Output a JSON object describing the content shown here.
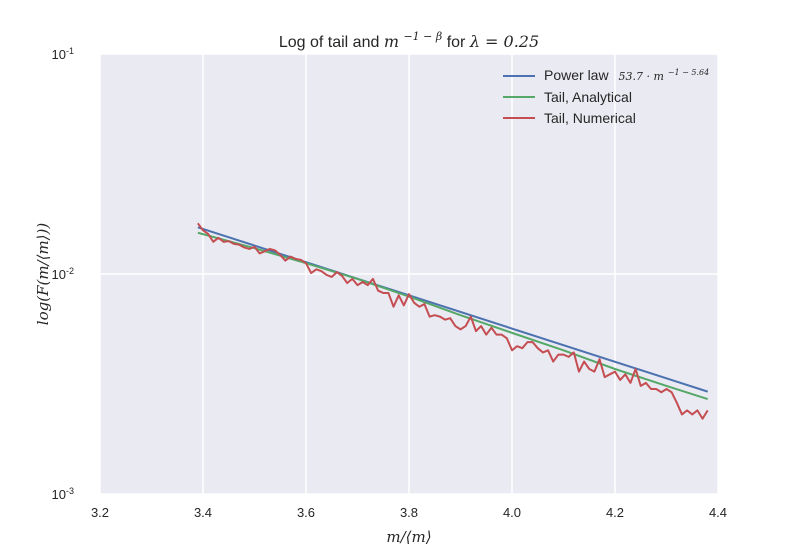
{
  "colors": {
    "plot_background": "#EAEAF2",
    "grid": "#FFFFFF",
    "text": "#262626",
    "power_law": "#4C72B0",
    "tail_analytical": "#55A868",
    "tail_numerical": "#C44E52"
  },
  "chart_data": {
    "type": "line",
    "title": {
      "prefix": "Log of tail and ",
      "base": "m",
      "exponent": "−1 − β",
      "middle": " for ",
      "condition": "λ = 0.25"
    },
    "xlabel": "m/⟨m⟩",
    "ylabel": "log(F(m/⟨m⟩))",
    "y_scale": "log",
    "xlim": [
      3.2,
      4.4
    ],
    "ylim": [
      0.001,
      0.1
    ],
    "x_ticks": [
      3.2,
      3.4,
      3.6,
      3.8,
      4.0,
      4.2,
      4.4
    ],
    "x_tick_labels": [
      "3.2",
      "3.4",
      "3.6",
      "3.8",
      "4.0",
      "4.2",
      "4.4"
    ],
    "y_ticks": [
      {
        "value": 0.001,
        "base": "10",
        "exp": "-3"
      },
      {
        "value": 0.01,
        "base": "10",
        "exp": "-2"
      },
      {
        "value": 0.1,
        "base": "10",
        "exp": "-1"
      }
    ],
    "grid": true,
    "legend_position": "top-right",
    "series": [
      {
        "key": "power_law",
        "name": "Power law",
        "formula": "53.7 · m",
        "formula_exponent": "−1 − 5.64",
        "x": [
          3.39,
          4.38
        ],
        "y": [
          0.0163,
          0.00292
        ]
      },
      {
        "key": "tail_analytical",
        "name": "Tail, Analytical",
        "x": [
          3.39,
          3.5,
          3.6,
          3.7,
          3.8,
          3.9,
          4.0,
          4.1,
          4.2,
          4.3,
          4.38
        ],
        "y": [
          0.0154,
          0.0131,
          0.0112,
          0.0095,
          0.0079,
          0.0065,
          0.0054,
          0.0045,
          0.0037,
          0.0031,
          0.0027
        ]
      },
      {
        "key": "tail_numerical",
        "name": "Tail, Numerical",
        "x": [
          3.39,
          3.4,
          3.41,
          3.42,
          3.43,
          3.44,
          3.45,
          3.46,
          3.47,
          3.48,
          3.49,
          3.5,
          3.51,
          3.52,
          3.53,
          3.54,
          3.55,
          3.56,
          3.57,
          3.58,
          3.59,
          3.6,
          3.61,
          3.62,
          3.63,
          3.64,
          3.65,
          3.66,
          3.67,
          3.68,
          3.69,
          3.7,
          3.71,
          3.72,
          3.73,
          3.74,
          3.75,
          3.76,
          3.77,
          3.78,
          3.79,
          3.8,
          3.81,
          3.82,
          3.83,
          3.84,
          3.85,
          3.86,
          3.87,
          3.88,
          3.89,
          3.9,
          3.91,
          3.92,
          3.93,
          3.94,
          3.95,
          3.96,
          3.97,
          3.98,
          3.99,
          4.0,
          4.01,
          4.02,
          4.03,
          4.04,
          4.05,
          4.06,
          4.07,
          4.08,
          4.09,
          4.1,
          4.11,
          4.12,
          4.13,
          4.14,
          4.15,
          4.16,
          4.17,
          4.18,
          4.19,
          4.2,
          4.21,
          4.22,
          4.23,
          4.24,
          4.25,
          4.26,
          4.27,
          4.28,
          4.29,
          4.3,
          4.31,
          4.32,
          4.33,
          4.34,
          4.35,
          4.36,
          4.37,
          4.38
        ],
        "y": [
          0.017,
          0.0158,
          0.0152,
          0.014,
          0.0146,
          0.014,
          0.0141,
          0.0137,
          0.0136,
          0.0132,
          0.013,
          0.0133,
          0.0124,
          0.0127,
          0.013,
          0.0128,
          0.0122,
          0.0115,
          0.012,
          0.0117,
          0.0116,
          0.0112,
          0.0101,
          0.0105,
          0.0103,
          0.0099,
          0.0097,
          0.0102,
          0.0098,
          0.0091,
          0.0095,
          0.0089,
          0.0092,
          0.0089,
          0.0095,
          0.0084,
          0.0082,
          0.0082,
          0.0071,
          0.008,
          0.0072,
          0.0081,
          0.0074,
          0.0071,
          0.0073,
          0.0064,
          0.0065,
          0.0064,
          0.0062,
          0.0063,
          0.0058,
          0.0056,
          0.0058,
          0.0064,
          0.0055,
          0.0058,
          0.0053,
          0.0057,
          0.0053,
          0.0053,
          0.0051,
          0.0045,
          0.0047,
          0.0046,
          0.0049,
          0.0049,
          0.0046,
          0.0044,
          0.0045,
          0.004,
          0.0043,
          0.0043,
          0.0042,
          0.0044,
          0.0036,
          0.004,
          0.0037,
          0.0036,
          0.0041,
          0.0034,
          0.0035,
          0.0036,
          0.0033,
          0.0035,
          0.0032,
          0.0037,
          0.0031,
          0.0032,
          0.003,
          0.003,
          0.0029,
          0.003,
          0.0029,
          0.0026,
          0.0023,
          0.0024,
          0.0023,
          0.0024,
          0.0022,
          0.0024
        ]
      }
    ]
  }
}
